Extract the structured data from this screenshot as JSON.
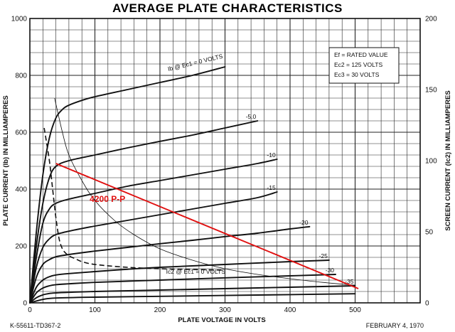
{
  "chart_data": {
    "type": "line",
    "title": "AVERAGE PLATE CHARACTERISTICS",
    "xlabel": "PLATE VOLTAGE IN VOLTS",
    "ylabel": "PLATE CURRENT (Ib) IN MILLIAMPERES",
    "y2label": "SCREEN CURRENT (Ic2) IN MILLIAMPERES",
    "xlim": [
      0,
      600
    ],
    "ylim": [
      0,
      1000
    ],
    "y2lim": [
      0,
      200
    ],
    "xticks": [
      "0",
      "100",
      "200",
      "300",
      "400",
      "500"
    ],
    "yticks": [
      "0",
      "200",
      "400",
      "600",
      "800",
      "1000"
    ],
    "y2ticks": [
      "0",
      "50",
      "100",
      "150",
      "200"
    ],
    "grid": true,
    "legend_box": {
      "position": "top-right",
      "lines": [
        "Ef = RATED VALUE",
        "Ec2 = 125 VOLTS",
        "Ec3 = 30 VOLTS"
      ]
    },
    "plate_curves": [
      {
        "label": "Ib @ Ec1 = 0 VOLTS",
        "x": [
          0,
          10,
          20,
          30,
          40,
          50,
          60,
          80,
          100,
          150,
          200,
          250,
          300
        ],
        "y": [
          0,
          250,
          450,
          580,
          650,
          680,
          695,
          712,
          725,
          750,
          775,
          800,
          830
        ]
      },
      {
        "label": "-5.0",
        "x": [
          0,
          10,
          20,
          30,
          40,
          60,
          100,
          150,
          200,
          250,
          300,
          350
        ],
        "y": [
          0,
          200,
          350,
          440,
          480,
          500,
          520,
          545,
          568,
          590,
          615,
          640
        ]
      },
      {
        "label": "-10",
        "x": [
          0,
          10,
          20,
          30,
          40,
          60,
          100,
          150,
          200,
          250,
          300,
          350,
          380
        ],
        "y": [
          0,
          160,
          280,
          330,
          350,
          365,
          385,
          410,
          430,
          450,
          470,
          490,
          505
        ]
      },
      {
        "label": "-15",
        "x": [
          0,
          10,
          20,
          30,
          40,
          60,
          100,
          150,
          200,
          250,
          300,
          350,
          380
        ],
        "y": [
          0,
          125,
          195,
          225,
          240,
          252,
          270,
          290,
          310,
          330,
          350,
          370,
          390
        ]
      },
      {
        "label": "-20",
        "x": [
          0,
          10,
          20,
          30,
          40,
          60,
          100,
          150,
          200,
          250,
          300,
          350,
          400,
          430
        ],
        "y": [
          0,
          90,
          135,
          152,
          162,
          170,
          182,
          195,
          208,
          220,
          233,
          245,
          260,
          268
        ]
      },
      {
        "label": "-25",
        "x": [
          0,
          10,
          20,
          30,
          40,
          60,
          100,
          150,
          200,
          300,
          400,
          460
        ],
        "y": [
          0,
          55,
          80,
          92,
          98,
          103,
          110,
          118,
          125,
          135,
          145,
          150
        ]
      },
      {
        "label": "-30",
        "x": [
          0,
          10,
          20,
          30,
          40,
          60,
          100,
          200,
          300,
          400,
          470
        ],
        "y": [
          0,
          35,
          52,
          60,
          64,
          67,
          72,
          80,
          88,
          95,
          100
        ]
      },
      {
        "label": "-35",
        "x": [
          0,
          10,
          20,
          30,
          40,
          60,
          100,
          200,
          300,
          400,
          500
        ],
        "y": [
          0,
          18,
          28,
          33,
          35,
          37,
          40,
          45,
          50,
          55,
          60
        ]
      },
      {
        "label": "",
        "x": [
          0,
          20,
          40,
          100,
          200,
          300,
          400,
          500
        ],
        "y": [
          0,
          12,
          17,
          20,
          23,
          26,
          29,
          32
        ]
      }
    ],
    "screen_curve": {
      "label": "Ic2 @ Ec1 = 0 VOLTS",
      "style": "dashed",
      "x": [
        22,
        30,
        35,
        40,
        45,
        50,
        55,
        60,
        70,
        80,
        100,
        150,
        200,
        250,
        300
      ],
      "y": [
        123,
        100,
        80,
        60,
        45,
        38,
        35,
        33,
        31,
        29,
        27,
        25,
        24,
        23.5,
        23
      ]
    },
    "thin_curve": {
      "label": "",
      "x": [
        38,
        50,
        60,
        80,
        100,
        130,
        160,
        200,
        250,
        300,
        350,
        400,
        450,
        500
      ],
      "y": [
        720,
        600,
        520,
        430,
        360,
        290,
        240,
        190,
        150,
        120,
        100,
        85,
        72,
        62
      ]
    },
    "load_line": {
      "label": "4200 P-P",
      "color": "#e01010",
      "x": [
        40,
        505
      ],
      "y": [
        490,
        50
      ]
    }
  },
  "footer": {
    "left": "K-55611-TD367-2",
    "right": "FEBRUARY 4, 1970"
  }
}
